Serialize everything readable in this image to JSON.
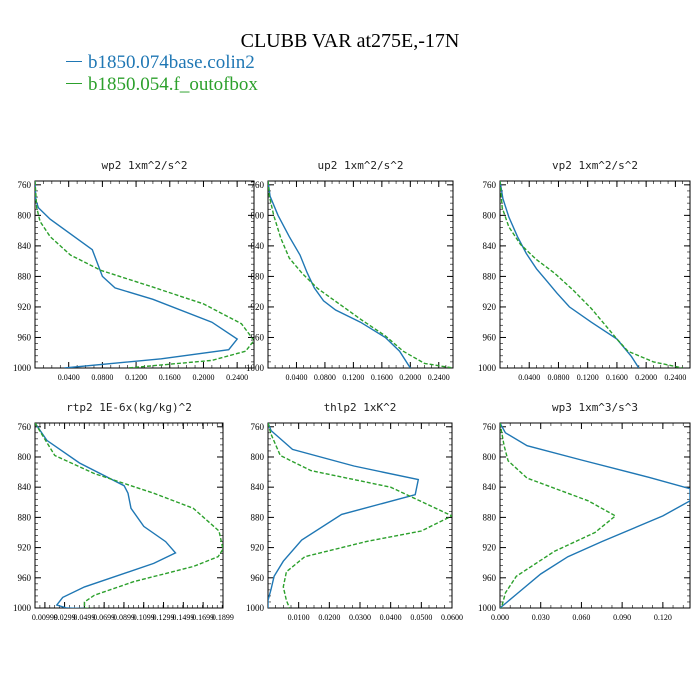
{
  "title": "CLUBB VAR at275E,-17N",
  "legend": [
    {
      "label": "b1850.074base.colin2",
      "color": "#1f77b4",
      "dash": "solid"
    },
    {
      "label": "b1850.054.f_outofbox",
      "color": "#2ca02c",
      "dash": "dashed"
    }
  ],
  "chart_data": [
    {
      "type": "line",
      "title": "wp2  1xm^2/s^2",
      "xticks": [
        "0.0400",
        "0.0800",
        "0.1200",
        "0.1600",
        "0.2000",
        "0.2400"
      ],
      "xtick_values": [
        0.04,
        0.08,
        0.12,
        0.16,
        0.2,
        0.24
      ],
      "xlim": [
        0.0,
        0.26
      ],
      "ylim": [
        1000,
        755
      ],
      "yticks": [
        760,
        800,
        840,
        880,
        920,
        960,
        1000
      ],
      "series": [
        {
          "name": "b1850.074base.colin2",
          "x": [
            0.0,
            0.001,
            0.004,
            0.018,
            0.068,
            0.08,
            0.095,
            0.14,
            0.21,
            0.24,
            0.23,
            0.15,
            0.035
          ],
          "y": [
            755,
            780,
            790,
            805,
            845,
            880,
            895,
            910,
            940,
            962,
            976,
            988,
            1000
          ]
        },
        {
          "name": "b1850.054.f_outofbox",
          "x": [
            0.0,
            0.002,
            0.006,
            0.018,
            0.042,
            0.078,
            0.14,
            0.2,
            0.245,
            0.26,
            0.25,
            0.21,
            0.11
          ],
          "y": [
            755,
            790,
            808,
            828,
            852,
            872,
            894,
            916,
            942,
            964,
            978,
            990,
            1000
          ]
        }
      ]
    },
    {
      "type": "line",
      "title": "up2  1xm^2/s^2",
      "xticks": [
        "0.0400",
        "0.0800",
        "0.1200",
        "0.1600",
        "0.2000",
        "0.2400"
      ],
      "xtick_values": [
        0.04,
        0.08,
        0.12,
        0.16,
        0.2,
        0.24
      ],
      "xlim": [
        0.0,
        0.26
      ],
      "ylim": [
        1000,
        755
      ],
      "yticks": [
        760,
        800,
        840,
        880,
        920,
        960,
        1000
      ],
      "series": [
        {
          "name": "b1850.074base.colin2",
          "x": [
            0.0,
            0.003,
            0.014,
            0.03,
            0.045,
            0.055,
            0.065,
            0.078,
            0.095,
            0.13,
            0.165,
            0.185,
            0.2
          ],
          "y": [
            755,
            775,
            800,
            828,
            852,
            875,
            895,
            912,
            924,
            940,
            960,
            978,
            1000
          ]
        },
        {
          "name": "b1850.054.f_outofbox",
          "x": [
            0.0,
            0.002,
            0.008,
            0.018,
            0.03,
            0.048,
            0.07,
            0.1,
            0.13,
            0.165,
            0.19,
            0.22,
            0.26
          ],
          "y": [
            755,
            775,
            800,
            830,
            856,
            876,
            896,
            916,
            936,
            958,
            978,
            994,
            1000
          ]
        }
      ]
    },
    {
      "type": "line",
      "title": "vp2  1xm^2/s^2",
      "xticks": [
        "0.0400",
        "0.0800",
        "0.1200",
        "0.1600",
        "0.2000",
        "0.2400"
      ],
      "xtick_values": [
        0.04,
        0.08,
        0.12,
        0.16,
        0.2,
        0.24
      ],
      "xlim": [
        0.0,
        0.26
      ],
      "ylim": [
        1000,
        755
      ],
      "yticks": [
        760,
        800,
        840,
        880,
        920,
        960,
        1000
      ],
      "series": [
        {
          "name": "b1850.074base.colin2",
          "x": [
            0.0,
            0.004,
            0.012,
            0.024,
            0.036,
            0.05,
            0.065,
            0.078,
            0.095,
            0.125,
            0.16,
            0.18,
            0.19
          ],
          "y": [
            755,
            778,
            802,
            828,
            850,
            870,
            887,
            902,
            920,
            940,
            962,
            985,
            1000
          ]
        },
        {
          "name": "b1850.054.f_outofbox",
          "x": [
            0.0,
            0.003,
            0.012,
            0.028,
            0.05,
            0.075,
            0.1,
            0.125,
            0.145,
            0.16,
            0.175,
            0.21,
            0.25
          ],
          "y": [
            755,
            790,
            815,
            838,
            858,
            876,
            898,
            922,
            945,
            962,
            978,
            992,
            1000
          ]
        }
      ]
    },
    {
      "type": "line",
      "title": "rtp2  1E-6x(kg/kg)^2",
      "xticks": [
        "0.00999",
        "0.0299",
        "0.0499",
        "0.0699",
        "0.0899",
        "0.1099",
        "0.1299",
        "0.1499",
        "0.1699",
        "0.1899"
      ],
      "xtick_values": [
        0.00999,
        0.0299,
        0.0499,
        0.0699,
        0.0899,
        0.1099,
        0.1299,
        0.1499,
        0.1699,
        0.1899
      ],
      "xlim": [
        0.0,
        0.19
      ],
      "ylim": [
        1000,
        755
      ],
      "yticks": [
        760,
        800,
        840,
        880,
        920,
        960,
        1000
      ],
      "series": [
        {
          "name": "b1850.074base.colin2",
          "x": [
            0.0,
            0.012,
            0.045,
            0.09,
            0.094,
            0.097,
            0.11,
            0.132,
            0.142,
            0.12,
            0.05,
            0.028,
            0.022,
            0.032,
            0.06
          ],
          "y": [
            755,
            778,
            808,
            838,
            848,
            868,
            892,
            912,
            927,
            941,
            972,
            986,
            996,
            1000,
            1001
          ]
        },
        {
          "name": "b1850.054.f_outofbox",
          "x": [
            0.0,
            0.006,
            0.02,
            0.06,
            0.12,
            0.16,
            0.186,
            0.19,
            0.185,
            0.16,
            0.1,
            0.06,
            0.05,
            0.05,
            0.06
          ],
          "y": [
            755,
            768,
            798,
            822,
            848,
            868,
            898,
            922,
            932,
            945,
            965,
            983,
            992,
            1000,
            1001
          ]
        }
      ]
    },
    {
      "type": "line",
      "title": "thlp2  1xK^2",
      "xticks": [
        "0.0100",
        "0.0200",
        "0.0300",
        "0.0400",
        "0.0500",
        "0.0600"
      ],
      "xtick_values": [
        0.01,
        0.02,
        0.03,
        0.04,
        0.05,
        0.06
      ],
      "xlim": [
        0.0,
        0.06
      ],
      "ylim": [
        1000,
        755
      ],
      "yticks": [
        760,
        800,
        840,
        880,
        920,
        960,
        1000
      ],
      "series": [
        {
          "name": "b1850.074base.colin2",
          "x": [
            0.0,
            0.001,
            0.008,
            0.028,
            0.049,
            0.048,
            0.024,
            0.011,
            0.005,
            0.002,
            0.001,
            0.0,
            0.0
          ],
          "y": [
            755,
            765,
            790,
            812,
            830,
            850,
            876,
            910,
            938,
            958,
            975,
            990,
            1000
          ]
        },
        {
          "name": "b1850.054.f_outofbox",
          "x": [
            0.0,
            0.001,
            0.004,
            0.014,
            0.04,
            0.06,
            0.05,
            0.032,
            0.012,
            0.006,
            0.005,
            0.006,
            0.007
          ],
          "y": [
            755,
            770,
            798,
            818,
            840,
            878,
            898,
            912,
            932,
            952,
            972,
            990,
            1000
          ]
        }
      ]
    },
    {
      "type": "line",
      "title": "wp3  1xm^3/s^3",
      "xticks": [
        "0.000",
        "0.030",
        "0.060",
        "0.090",
        "0.120"
      ],
      "xtick_values": [
        0.0,
        0.03,
        0.06,
        0.09,
        0.12
      ],
      "xlim": [
        0.0,
        0.14
      ],
      "ylim": [
        1000,
        755
      ],
      "yticks": [
        760,
        800,
        840,
        880,
        920,
        960,
        1000
      ],
      "series": [
        {
          "name": "b1850.074base.colin2",
          "x": [
            0.0,
            0.004,
            0.02,
            0.06,
            0.11,
            0.14,
            0.14,
            0.12,
            0.075,
            0.05,
            0.03,
            0.012,
            0.0
          ],
          "y": [
            755,
            768,
            785,
            804,
            827,
            842,
            858,
            878,
            912,
            932,
            955,
            982,
            1000
          ]
        },
        {
          "name": "b1850.054.f_outofbox",
          "x": [
            0.0,
            0.003,
            0.006,
            0.02,
            0.065,
            0.085,
            0.07,
            0.04,
            0.012,
            0.004,
            0.001
          ],
          "y": [
            755,
            785,
            805,
            828,
            858,
            878,
            900,
            925,
            958,
            980,
            1000
          ]
        }
      ]
    }
  ]
}
